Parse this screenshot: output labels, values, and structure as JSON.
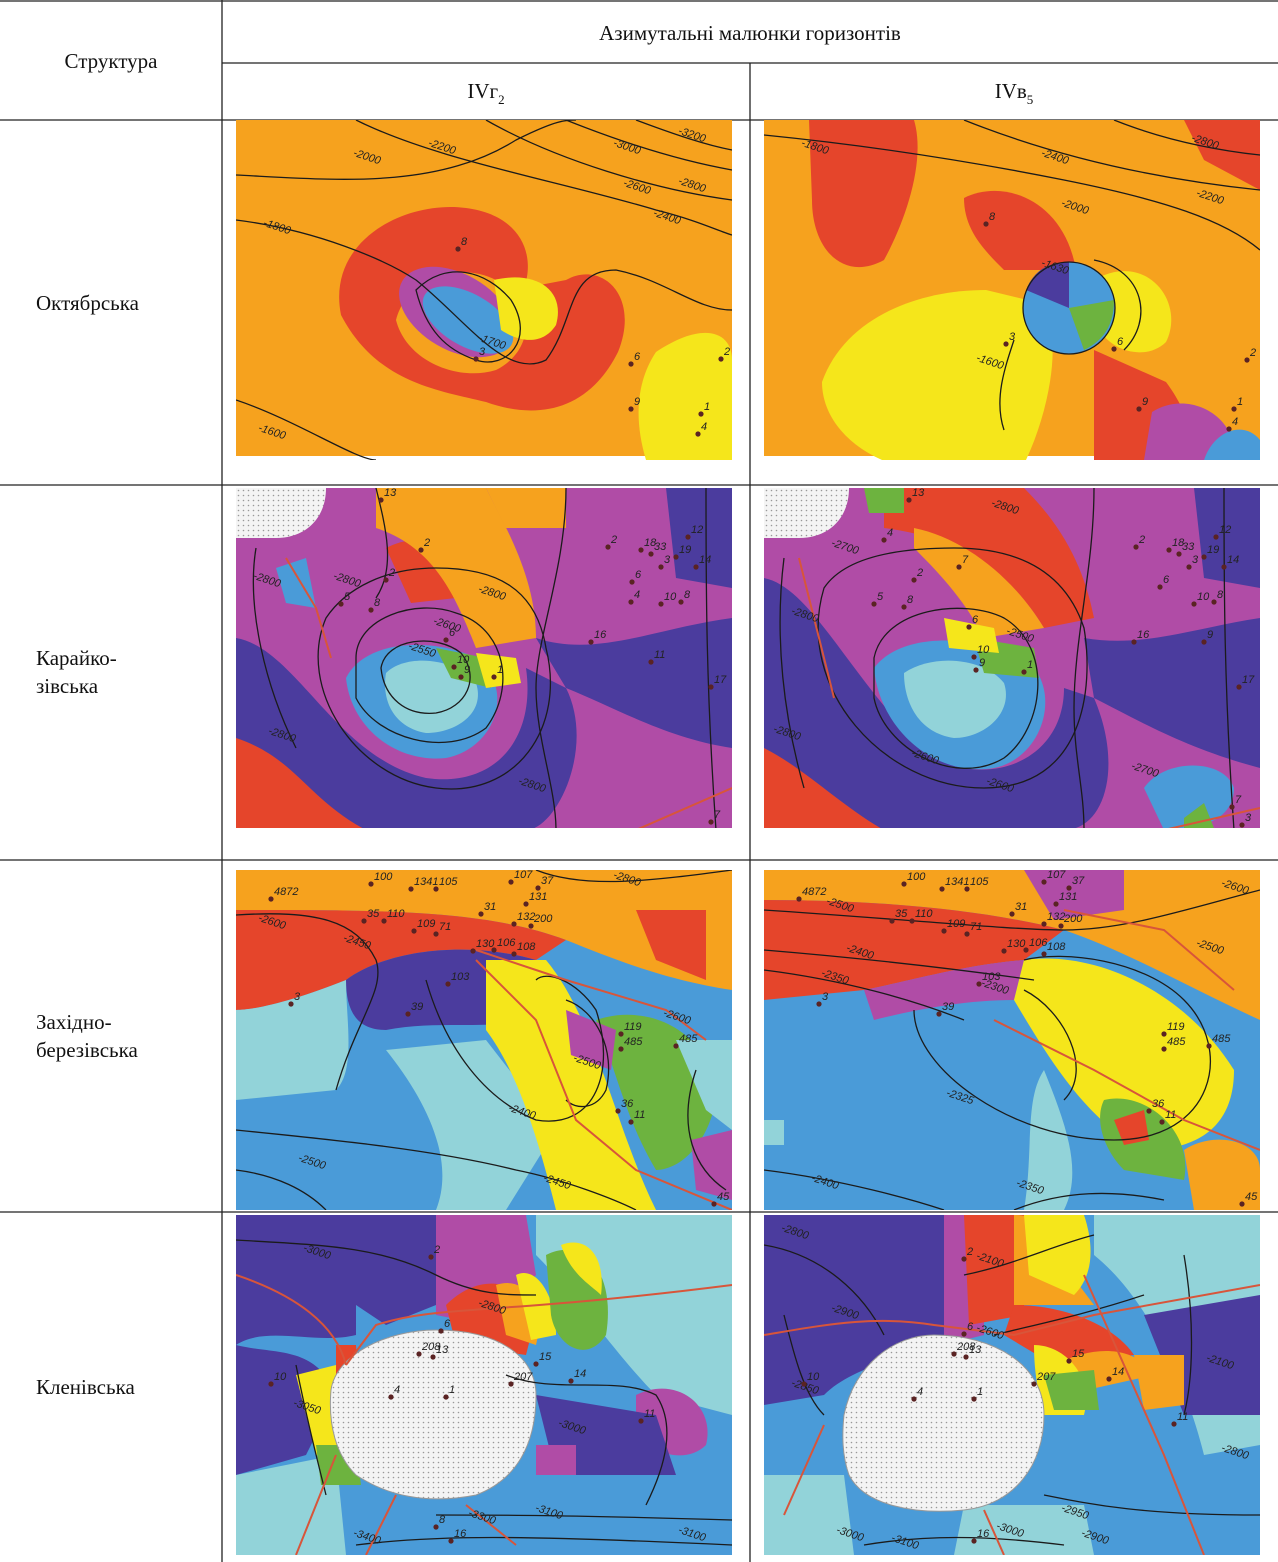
{
  "header": {
    "structure": "Структура",
    "group": "Азимутальні малюнки горизонтів",
    "horizons": [
      {
        "name": "IVг",
        "sub": "2"
      },
      {
        "name": "IVв",
        "sub": "5"
      }
    ]
  },
  "rows": [
    {
      "structure": [
        "Октябрська"
      ],
      "maps": [
        {
          "contours": [
            "-2000",
            "-2200",
            "-3000",
            "-3200",
            "-2600",
            "-2800",
            "-2400",
            "-1800",
            "-1700",
            "-1600"
          ],
          "wells": [
            "8",
            "3",
            "6",
            "2",
            "9",
            "1",
            "4"
          ]
        },
        {
          "contours": [
            "-1800",
            "-2400",
            "-2800",
            "-2000",
            "-2200",
            "-1630",
            "-1600"
          ],
          "wells": [
            "8",
            "3",
            "6",
            "2",
            "9",
            "1",
            "4"
          ]
        }
      ]
    },
    {
      "structure": [
        "Карайко-",
        "зівська"
      ],
      "maps": [
        {
          "contours": [
            "-2800",
            "-2800",
            "-2800",
            "-2600",
            "-2550",
            "-2800",
            "-2800"
          ],
          "wells": [
            "13",
            "2",
            "2",
            "5",
            "8",
            "6",
            "10",
            "9",
            "1",
            "2",
            "18",
            "33",
            "3",
            "12",
            "19",
            "14",
            "6",
            "4",
            "10",
            "8",
            "11",
            "16",
            "17",
            "7"
          ]
        },
        {
          "contours": [
            "-2700",
            "-2800",
            "-2800",
            "-2500",
            "-2800",
            "-2600",
            "-2600",
            "-2700"
          ],
          "wells": [
            "13",
            "4",
            "7",
            "2",
            "5",
            "8",
            "6",
            "10",
            "9",
            "1",
            "2",
            "18",
            "33",
            "3",
            "12",
            "19",
            "14",
            "6",
            "10",
            "8",
            "16",
            "9",
            "17",
            "7",
            "3"
          ]
        }
      ]
    },
    {
      "structure": [
        "Західно-",
        "березівська"
      ],
      "maps": [
        {
          "contours": [
            "-2600",
            "-2800",
            "-2450",
            "-2600",
            "-2500",
            "-2400",
            "-2500",
            "-2450"
          ],
          "wells": [
            "4872",
            "100",
            "1341",
            "105",
            "107",
            "37",
            "131",
            "132",
            "200",
            "35",
            "110",
            "109",
            "71",
            "31",
            "130",
            "106",
            "108",
            "103",
            "3",
            "39",
            "119",
            "485",
            "485",
            "36",
            "11",
            "45"
          ]
        },
        {
          "contours": [
            "-2500",
            "-2600",
            "-2400",
            "-2350",
            "-2300",
            "-2500",
            "-2325",
            "-2400",
            "-2350"
          ],
          "wells": [
            "4872",
            "100",
            "1341",
            "105",
            "107",
            "37",
            "131",
            "132",
            "200",
            "35",
            "110",
            "109",
            "71",
            "31",
            "130",
            "106",
            "108",
            "103",
            "3",
            "39",
            "119",
            "485",
            "485",
            "36",
            "11",
            "45"
          ]
        }
      ]
    },
    {
      "structure": [
        "Кленівська"
      ],
      "maps": [
        {
          "contours": [
            "-3000",
            "-2800",
            "-3050",
            "-3000",
            "-3100",
            "-3300",
            "-3400",
            "-3100"
          ],
          "wells": [
            "2",
            "6",
            "208",
            "13",
            "15",
            "207",
            "14",
            "10",
            "4",
            "1",
            "11",
            "8",
            "16"
          ]
        },
        {
          "contours": [
            "-2800",
            "-2900",
            "-2850",
            "-2100",
            "-2600",
            "-2100",
            "-2800",
            "-3000",
            "-2950",
            "-3100",
            "-2900",
            "-3000"
          ],
          "wells": [
            "2",
            "6",
            "208",
            "13",
            "15",
            "207",
            "14",
            "10",
            "4",
            "1",
            "11",
            "16"
          ]
        }
      ]
    }
  ]
}
